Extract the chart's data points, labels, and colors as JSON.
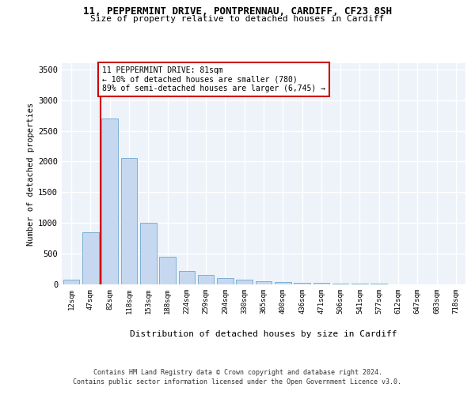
{
  "title_line1": "11, PEPPERMINT DRIVE, PONTPRENNAU, CARDIFF, CF23 8SH",
  "title_line2": "Size of property relative to detached houses in Cardiff",
  "xlabel": "Distribution of detached houses by size in Cardiff",
  "ylabel": "Number of detached properties",
  "bar_categories": [
    "12sqm",
    "47sqm",
    "82sqm",
    "118sqm",
    "153sqm",
    "188sqm",
    "224sqm",
    "259sqm",
    "294sqm",
    "330sqm",
    "365sqm",
    "400sqm",
    "436sqm",
    "471sqm",
    "506sqm",
    "541sqm",
    "577sqm",
    "612sqm",
    "647sqm",
    "683sqm",
    "718sqm"
  ],
  "bar_values": [
    75,
    850,
    2700,
    2060,
    1000,
    450,
    220,
    150,
    100,
    75,
    55,
    40,
    30,
    20,
    15,
    10,
    8,
    5,
    3,
    2,
    1
  ],
  "bar_color": "#c5d8f0",
  "bar_edge_color": "#7bafd4",
  "bg_color": "#eef3fa",
  "grid_color": "#ffffff",
  "vline_x_index": 1.5,
  "vline_color": "#cc0000",
  "annotation_line1": "11 PEPPERMINT DRIVE: 81sqm",
  "annotation_line2": "← 10% of detached houses are smaller (780)",
  "annotation_line3": "89% of semi-detached houses are larger (6,745) →",
  "annotation_box_color": "#ffffff",
  "annotation_box_edge": "#cc0000",
  "ylim": [
    0,
    3600
  ],
  "yticks": [
    0,
    500,
    1000,
    1500,
    2000,
    2500,
    3000,
    3500
  ],
  "footer_line1": "Contains HM Land Registry data © Crown copyright and database right 2024.",
  "footer_line2": "Contains public sector information licensed under the Open Government Licence v3.0."
}
